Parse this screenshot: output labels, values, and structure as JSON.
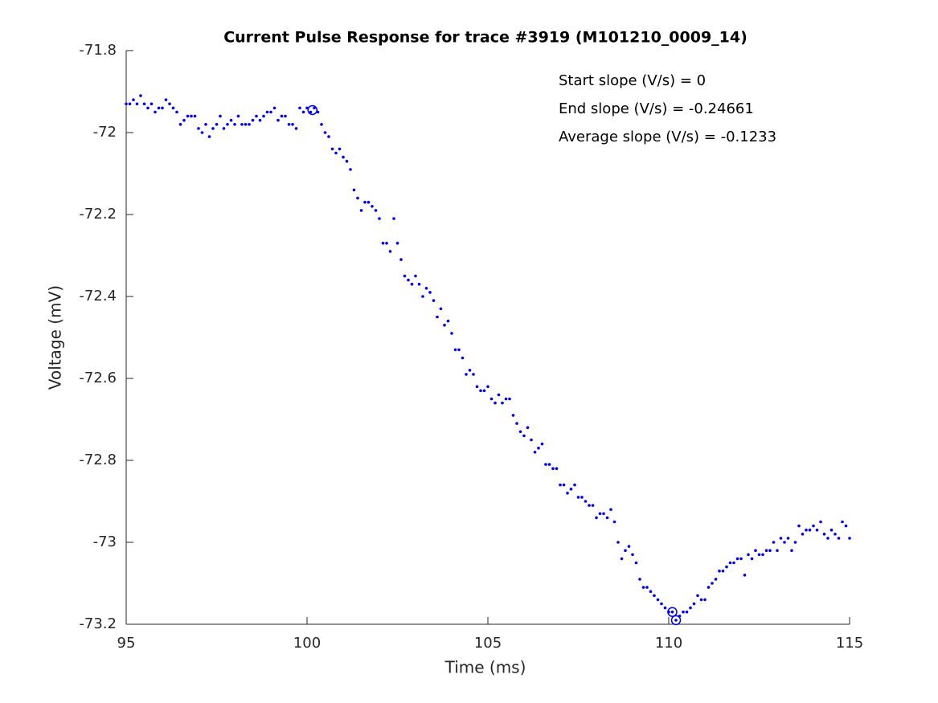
{
  "chart_data": {
    "type": "scatter",
    "title": "Current Pulse Response for trace #3919 (M101210_0009_14)",
    "x_label": "Time (ms)",
    "y_label": "Voltage (mV)",
    "annotations": [
      "Start slope (V/s) = 0",
      "End slope (V/s) = -0.24661",
      "Average slope (V/s) = -0.1233"
    ],
    "xlim": [
      95,
      115
    ],
    "xticks": [
      95,
      100,
      105,
      110,
      115
    ],
    "ylim": [
      -73.2,
      -71.8
    ],
    "yticks": [
      -71.8,
      -72,
      -72.2,
      -72.4,
      -72.6,
      -72.8,
      -73,
      -73.2
    ],
    "grid": false,
    "series": [
      {
        "color": "#0000ff",
        "marker": "dot",
        "x": [
          95.0,
          95.1,
          95.2,
          95.3,
          95.4,
          95.5,
          95.6,
          95.7,
          95.8,
          95.9,
          96.0,
          96.1,
          96.2,
          96.3,
          96.4,
          96.5,
          96.6,
          96.7,
          96.8,
          96.9,
          97.0,
          97.1,
          97.2,
          97.3,
          97.4,
          97.5,
          97.6,
          97.7,
          97.8,
          97.9,
          98.0,
          98.1,
          98.2,
          98.3,
          98.4,
          98.5,
          98.6,
          98.7,
          98.8,
          98.9,
          99.0,
          99.1,
          99.2,
          99.3,
          99.4,
          99.5,
          99.6,
          99.7,
          99.8,
          99.9,
          100.0,
          100.1,
          100.2,
          100.3,
          100.4,
          100.5,
          100.6,
          100.7,
          100.8,
          100.9,
          101.0,
          101.1,
          101.2,
          101.3,
          101.4,
          101.5,
          101.6,
          101.7,
          101.8,
          101.9,
          102.0,
          102.1,
          102.2,
          102.3,
          102.4,
          102.5,
          102.6,
          102.7,
          102.8,
          102.9,
          103.0,
          103.1,
          103.2,
          103.3,
          103.4,
          103.5,
          103.6,
          103.7,
          103.8,
          103.9,
          104.0,
          104.1,
          104.2,
          104.3,
          104.4,
          104.5,
          104.6,
          104.7,
          104.8,
          104.9,
          105.0,
          105.1,
          105.2,
          105.3,
          105.4,
          105.5,
          105.6,
          105.7,
          105.8,
          105.9,
          106.0,
          106.1,
          106.2,
          106.3,
          106.4,
          106.5,
          106.6,
          106.7,
          106.8,
          106.9,
          107.0,
          107.1,
          107.2,
          107.3,
          107.4,
          107.5,
          107.6,
          107.7,
          107.8,
          107.9,
          108.0,
          108.1,
          108.2,
          108.3,
          108.4,
          108.5,
          108.6,
          108.7,
          108.8,
          108.9,
          109.0,
          109.1,
          109.2,
          109.3,
          109.4,
          109.5,
          109.6,
          109.7,
          109.8,
          109.9,
          110.0,
          110.1,
          110.2,
          110.3,
          110.4,
          110.5,
          110.6,
          110.7,
          110.8,
          110.9,
          111.0,
          111.1,
          111.2,
          111.3,
          111.4,
          111.5,
          111.6,
          111.7,
          111.8,
          111.9,
          112.0,
          112.1,
          112.2,
          112.3,
          112.4,
          112.5,
          112.6,
          112.7,
          112.8,
          112.9,
          113.0,
          113.1,
          113.2,
          113.3,
          113.4,
          113.5,
          113.6,
          113.7,
          113.8,
          113.9,
          114.0,
          114.1,
          114.2,
          114.3,
          114.4,
          114.5,
          114.6,
          114.7,
          114.8,
          114.9,
          115.0
        ],
        "values": [
          -71.93,
          -71.93,
          -71.92,
          -71.93,
          -71.91,
          -71.93,
          -71.94,
          -71.93,
          -71.95,
          -71.94,
          -71.94,
          -71.92,
          -71.93,
          -71.94,
          -71.95,
          -71.98,
          -71.97,
          -71.96,
          -71.96,
          -71.96,
          -71.99,
          -72.0,
          -71.98,
          -72.01,
          -71.99,
          -71.98,
          -71.96,
          -71.99,
          -71.98,
          -71.97,
          -71.98,
          -71.96,
          -71.98,
          -71.98,
          -71.98,
          -71.97,
          -71.96,
          -71.97,
          -71.96,
          -71.95,
          -71.95,
          -71.94,
          -71.97,
          -71.96,
          -71.96,
          -71.98,
          -71.98,
          -71.99,
          -71.94,
          -71.95,
          -71.94,
          -71.95,
          -71.94,
          -71.95,
          -71.98,
          -72.0,
          -72.01,
          -72.04,
          -72.05,
          -72.04,
          -72.06,
          -72.07,
          -72.09,
          -72.14,
          -72.16,
          -72.19,
          -72.17,
          -72.17,
          -72.18,
          -72.19,
          -72.21,
          -72.27,
          -72.27,
          -72.29,
          -72.21,
          -72.27,
          -72.31,
          -72.35,
          -72.36,
          -72.37,
          -72.35,
          -72.37,
          -72.4,
          -72.38,
          -72.39,
          -72.41,
          -72.45,
          -72.43,
          -72.47,
          -72.46,
          -72.49,
          -72.53,
          -72.53,
          -72.55,
          -72.59,
          -72.58,
          -72.59,
          -72.62,
          -72.63,
          -72.63,
          -72.62,
          -72.65,
          -72.66,
          -72.64,
          -72.66,
          -72.65,
          -72.65,
          -72.69,
          -72.71,
          -72.73,
          -72.74,
          -72.72,
          -72.75,
          -72.78,
          -72.77,
          -72.76,
          -72.81,
          -72.81,
          -72.82,
          -72.82,
          -72.86,
          -72.86,
          -72.88,
          -72.87,
          -72.86,
          -72.89,
          -72.89,
          -72.9,
          -72.91,
          -72.91,
          -72.94,
          -72.93,
          -72.93,
          -72.94,
          -72.92,
          -72.95,
          -73.0,
          -73.04,
          -73.02,
          -73.01,
          -73.03,
          -73.05,
          -73.09,
          -73.11,
          -73.11,
          -73.12,
          -73.13,
          -73.14,
          -73.15,
          -73.16,
          -73.17,
          -73.17,
          -73.19,
          -73.18,
          -73.17,
          -73.17,
          -73.16,
          -73.15,
          -73.13,
          -73.14,
          -73.14,
          -73.11,
          -73.1,
          -73.09,
          -73.07,
          -73.07,
          -73.06,
          -73.05,
          -73.05,
          -73.04,
          -73.04,
          -73.08,
          -73.03,
          -73.04,
          -73.02,
          -73.03,
          -73.03,
          -73.02,
          -73.02,
          -73.0,
          -73.02,
          -72.99,
          -73.0,
          -72.99,
          -73.02,
          -73.0,
          -72.96,
          -72.98,
          -72.97,
          -72.97,
          -72.96,
          -72.97,
          -72.95,
          -72.98,
          -72.99,
          -72.97,
          -72.98,
          -72.99,
          -72.95,
          -72.96,
          -72.99
        ]
      },
      {
        "color": "#0000ff",
        "marker": "circle",
        "x": [
          100.15,
          110.1,
          110.2
        ],
        "values": [
          -71.945,
          -73.17,
          -73.19
        ]
      }
    ]
  }
}
